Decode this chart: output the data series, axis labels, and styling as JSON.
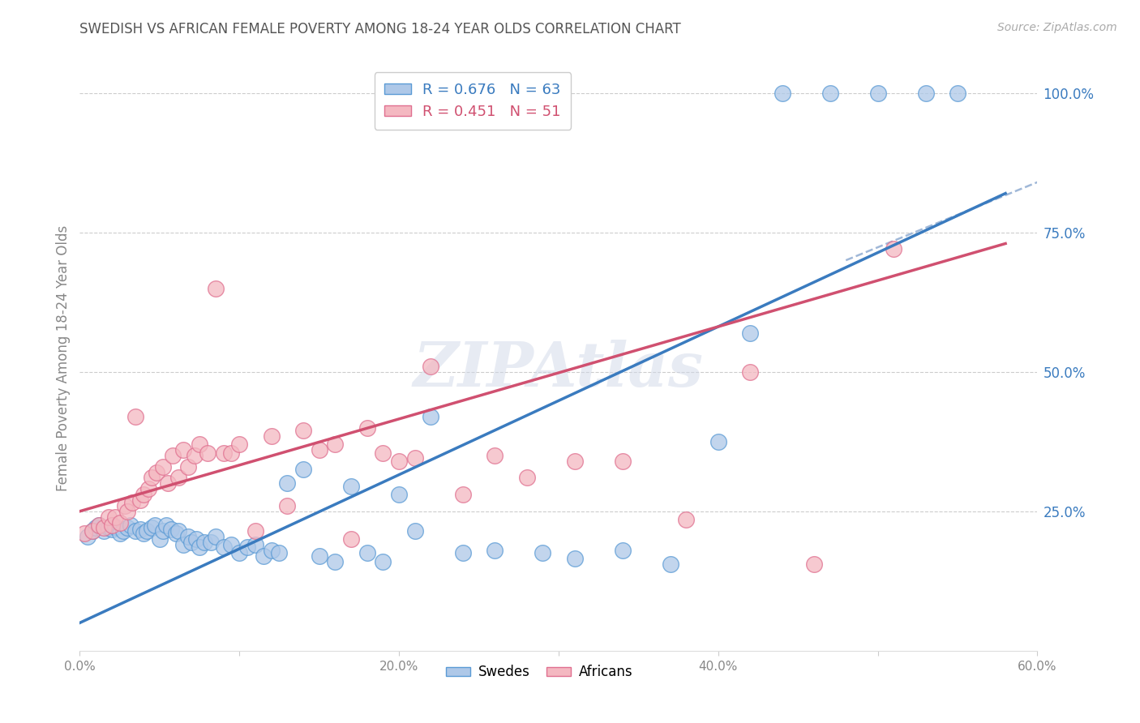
{
  "title": "SWEDISH VS AFRICAN FEMALE POVERTY AMONG 18-24 YEAR OLDS CORRELATION CHART",
  "source": "Source: ZipAtlas.com",
  "ylabel": "Female Poverty Among 18-24 Year Olds",
  "xlim": [
    0.0,
    0.6
  ],
  "ylim": [
    0.0,
    1.05
  ],
  "xtick_labels": [
    "0.0%",
    "",
    "20.0%",
    "",
    "40.0%",
    "",
    "60.0%"
  ],
  "xtick_vals": [
    0.0,
    0.1,
    0.2,
    0.3,
    0.4,
    0.5,
    0.6
  ],
  "ytick_labels": [
    "100.0%",
    "75.0%",
    "50.0%",
    "25.0%"
  ],
  "ytick_vals": [
    1.0,
    0.75,
    0.5,
    0.25
  ],
  "swedes_color": "#aec8e8",
  "swedes_edge_color": "#5b9bd5",
  "africans_color": "#f4b8c1",
  "africans_edge_color": "#e07090",
  "line_swedes_color": "#3a7bbf",
  "line_africans_color": "#d05070",
  "dashed_line_color": "#a0b8d8",
  "background_color": "#ffffff",
  "watermark_text": "ZIPAtlas",
  "swedes_line": {
    "x0": 0.0,
    "y0": 0.05,
    "x1": 0.58,
    "y1": 0.82
  },
  "africans_line": {
    "x0": 0.0,
    "y0": 0.25,
    "x1": 0.58,
    "y1": 0.73
  },
  "dashed_line": {
    "x0": 0.48,
    "y0": 0.7,
    "x1": 0.6,
    "y1": 0.84
  },
  "swedes_x": [
    0.005,
    0.008,
    0.01,
    0.012,
    0.015,
    0.018,
    0.02,
    0.022,
    0.025,
    0.027,
    0.03,
    0.032,
    0.035,
    0.038,
    0.04,
    0.042,
    0.045,
    0.047,
    0.05,
    0.052,
    0.054,
    0.057,
    0.06,
    0.062,
    0.065,
    0.068,
    0.07,
    0.073,
    0.075,
    0.078,
    0.082,
    0.085,
    0.09,
    0.095,
    0.1,
    0.105,
    0.11,
    0.115,
    0.12,
    0.125,
    0.13,
    0.14,
    0.15,
    0.16,
    0.17,
    0.18,
    0.19,
    0.2,
    0.21,
    0.22,
    0.24,
    0.26,
    0.29,
    0.31,
    0.34,
    0.37,
    0.4,
    0.42,
    0.44,
    0.47,
    0.5,
    0.53,
    0.55
  ],
  "swedes_y": [
    0.205,
    0.215,
    0.22,
    0.225,
    0.215,
    0.22,
    0.218,
    0.222,
    0.21,
    0.215,
    0.22,
    0.225,
    0.215,
    0.218,
    0.21,
    0.215,
    0.22,
    0.225,
    0.2,
    0.215,
    0.225,
    0.218,
    0.21,
    0.215,
    0.19,
    0.205,
    0.195,
    0.2,
    0.185,
    0.195,
    0.195,
    0.205,
    0.185,
    0.19,
    0.175,
    0.185,
    0.19,
    0.17,
    0.18,
    0.175,
    0.3,
    0.325,
    0.17,
    0.16,
    0.295,
    0.175,
    0.16,
    0.28,
    0.215,
    0.42,
    0.175,
    0.18,
    0.175,
    0.165,
    0.18,
    0.155,
    0.375,
    0.57,
    1.0,
    1.0,
    1.0,
    1.0,
    1.0
  ],
  "africans_x": [
    0.003,
    0.008,
    0.012,
    0.015,
    0.018,
    0.02,
    0.022,
    0.025,
    0.028,
    0.03,
    0.033,
    0.035,
    0.038,
    0.04,
    0.043,
    0.045,
    0.048,
    0.052,
    0.055,
    0.058,
    0.062,
    0.065,
    0.068,
    0.072,
    0.075,
    0.08,
    0.085,
    0.09,
    0.095,
    0.1,
    0.11,
    0.12,
    0.13,
    0.14,
    0.15,
    0.16,
    0.17,
    0.18,
    0.19,
    0.2,
    0.21,
    0.22,
    0.24,
    0.26,
    0.28,
    0.31,
    0.34,
    0.38,
    0.42,
    0.46,
    0.51
  ],
  "africans_y": [
    0.21,
    0.215,
    0.225,
    0.22,
    0.24,
    0.225,
    0.24,
    0.23,
    0.26,
    0.25,
    0.265,
    0.42,
    0.27,
    0.28,
    0.29,
    0.31,
    0.32,
    0.33,
    0.3,
    0.35,
    0.31,
    0.36,
    0.33,
    0.35,
    0.37,
    0.355,
    0.65,
    0.355,
    0.355,
    0.37,
    0.215,
    0.385,
    0.26,
    0.395,
    0.36,
    0.37,
    0.2,
    0.4,
    0.355,
    0.34,
    0.345,
    0.51,
    0.28,
    0.35,
    0.31,
    0.34,
    0.34,
    0.235,
    0.5,
    0.155,
    0.72
  ]
}
